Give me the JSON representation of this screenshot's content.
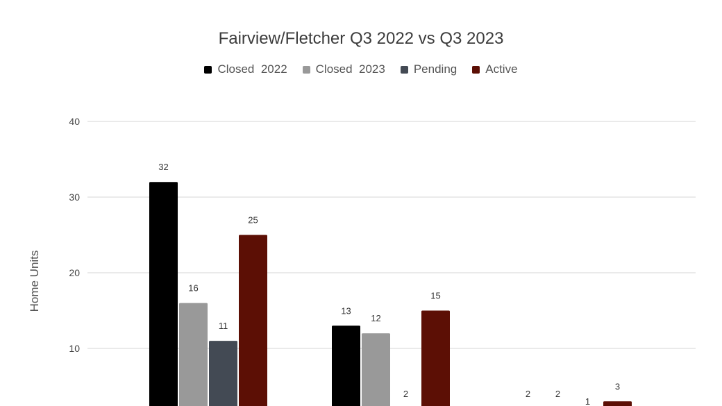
{
  "chart_data": {
    "type": "bar",
    "title": "Fairview/Fletcher Q3 2022 vs Q3 2023",
    "xlabel": "",
    "ylabel": "Home Units",
    "ylim": [
      0,
      40
    ],
    "yticks": [
      10,
      20,
      30,
      40
    ],
    "grid": true,
    "legend_position": "top",
    "categories": [
      "",
      "",
      ""
    ],
    "series": [
      {
        "name": "Closed  2022",
        "color": "#000000",
        "values": [
          32,
          13,
          2
        ]
      },
      {
        "name": "Closed  2023",
        "color": "#999999",
        "values": [
          16,
          12,
          2
        ]
      },
      {
        "name": "Pending",
        "color": "#434a54",
        "values": [
          11,
          2,
          1
        ]
      },
      {
        "name": "Active",
        "color": "#5c0f05",
        "values": [
          25,
          15,
          3
        ]
      }
    ]
  }
}
